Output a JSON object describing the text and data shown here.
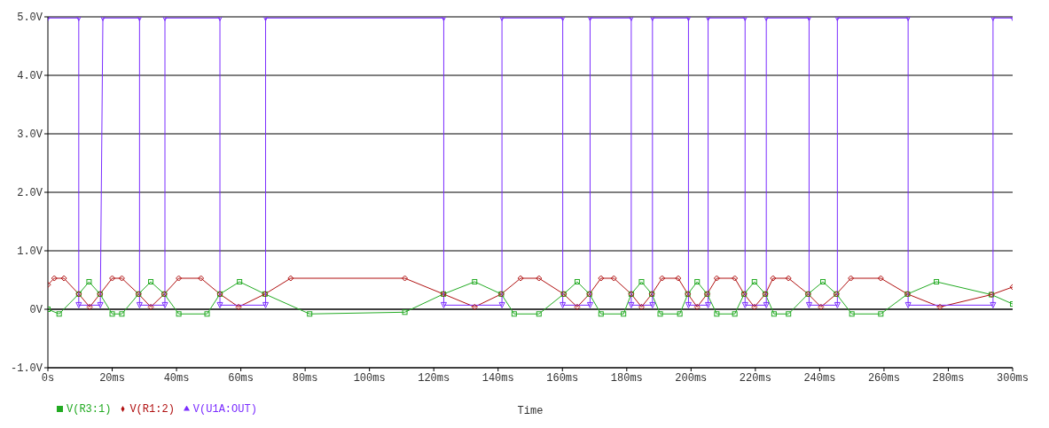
{
  "chart_data": {
    "type": "line",
    "xlabel": "Time",
    "legend": "bottom left",
    "grid": "y",
    "line_style": "solid",
    "xlim": [
      0,
      300
    ],
    "xticks": [
      {
        "value": 0,
        "label": "0s"
      },
      {
        "value": 20,
        "label": "20ms"
      },
      {
        "value": 40,
        "label": "40ms"
      },
      {
        "value": 60,
        "label": "60ms"
      },
      {
        "value": 80,
        "label": "80ms"
      },
      {
        "value": 100,
        "label": "100ms"
      },
      {
        "value": 120,
        "label": "120ms"
      },
      {
        "value": 140,
        "label": "140ms"
      },
      {
        "value": 160,
        "label": "160ms"
      },
      {
        "value": 180,
        "label": "180ms"
      },
      {
        "value": 200,
        "label": "200ms"
      },
      {
        "value": 220,
        "label": "220ms"
      },
      {
        "value": 240,
        "label": "240ms"
      },
      {
        "value": 260,
        "label": "260ms"
      },
      {
        "value": 280,
        "label": "280ms"
      },
      {
        "value": 300,
        "label": "300ms"
      }
    ],
    "ylim": [
      -1,
      5
    ],
    "yticks": [
      {
        "value": -1,
        "label": "-1.0V"
      },
      {
        "value": 0,
        "label": "0V"
      },
      {
        "value": 1,
        "label": "1.0V"
      },
      {
        "value": 2,
        "label": "2.0V"
      },
      {
        "value": 3,
        "label": "3.0V"
      },
      {
        "value": 4,
        "label": "4.0V"
      },
      {
        "value": 5,
        "label": "5.0V"
      }
    ],
    "series": [
      {
        "name": "V(R3:1)",
        "color": "#22aa22",
        "marker": "square",
        "x": [
          0,
          3.5,
          9.6,
          12.8,
          16.2,
          20,
          23,
          28.2,
          32,
          36.2,
          40.7,
          49.5,
          53.5,
          59.6,
          67.5,
          81.4,
          111,
          123,
          132.7,
          141,
          145,
          152.7,
          160.4,
          164.6,
          168.4,
          172,
          179,
          181.4,
          184.6,
          187.8,
          190.4,
          196.5,
          199,
          201.9,
          205,
          208,
          213.6,
          216.5,
          219.7,
          223.1,
          225.8,
          230.3,
          236.4,
          241,
          245.2,
          250,
          259,
          267.3,
          276.3,
          293.4,
          300
        ],
        "values": [
          0,
          -0.08,
          0.26,
          0.47,
          0.26,
          -0.08,
          -0.08,
          0.26,
          0.47,
          0.26,
          -0.08,
          -0.08,
          0.26,
          0.47,
          0.26,
          -0.08,
          -0.05,
          0.26,
          0.47,
          0.26,
          -0.08,
          -0.08,
          0.26,
          0.47,
          0.26,
          -0.08,
          -0.08,
          0.26,
          0.47,
          0.26,
          -0.08,
          -0.08,
          0.26,
          0.47,
          0.26,
          -0.08,
          -0.08,
          0.26,
          0.47,
          0.26,
          -0.08,
          -0.08,
          0.26,
          0.47,
          0.26,
          -0.08,
          -0.08,
          0.26,
          0.47,
          0.25,
          0.09
        ]
      },
      {
        "name": "V(R1:2)",
        "color": "#b01010",
        "marker": "diamond",
        "x": [
          0,
          2,
          5,
          9.6,
          13,
          16.2,
          20,
          23,
          28.2,
          32,
          36.2,
          40.7,
          47.6,
          53.5,
          59.3,
          67.5,
          75.5,
          111,
          123,
          132.7,
          141,
          147,
          152.7,
          160.4,
          164.6,
          168.4,
          172,
          176,
          181.4,
          184.6,
          187.8,
          191,
          196,
          199,
          201.9,
          205,
          208,
          213.6,
          216.5,
          219.7,
          223.1,
          225.5,
          230.3,
          236.4,
          240.4,
          245.2,
          249.7,
          259,
          267.3,
          277.4,
          293.4,
          300
        ],
        "values": [
          0.42,
          0.53,
          0.53,
          0.26,
          0.04,
          0.26,
          0.53,
          0.53,
          0.26,
          0.04,
          0.26,
          0.53,
          0.53,
          0.26,
          0.04,
          0.26,
          0.53,
          0.53,
          0.26,
          0.04,
          0.26,
          0.53,
          0.53,
          0.26,
          0.04,
          0.26,
          0.53,
          0.53,
          0.26,
          0.04,
          0.26,
          0.53,
          0.53,
          0.26,
          0.04,
          0.26,
          0.53,
          0.53,
          0.26,
          0.04,
          0.26,
          0.53,
          0.53,
          0.26,
          0.04,
          0.26,
          0.53,
          0.53,
          0.26,
          0.04,
          0.25,
          0.38
        ]
      },
      {
        "name": "V(U1A:OUT)",
        "color": "#7a2cff",
        "marker": "triangle",
        "x": [
          0,
          9.6,
          9.6,
          16.3,
          17.1,
          28.5,
          28.5,
          36.4,
          36.4,
          53.5,
          53.5,
          67.7,
          67.7,
          123.1,
          123.1,
          141.2,
          141.2,
          160.1,
          160.1,
          168.6,
          168.6,
          181.4,
          181.4,
          188,
          188,
          199.2,
          199.2,
          205.3,
          205.3,
          216.8,
          216.8,
          223.4,
          223.4,
          236.7,
          236.7,
          245.5,
          245.5,
          267.5,
          267.5,
          293.9,
          293.9,
          300
        ],
        "values": [
          4.98,
          4.98,
          0.07,
          0.07,
          4.98,
          4.98,
          0.07,
          0.07,
          4.98,
          4.98,
          0.07,
          0.07,
          4.98,
          4.98,
          0.07,
          0.07,
          4.98,
          4.98,
          0.07,
          0.07,
          4.98,
          4.98,
          0.07,
          0.07,
          4.98,
          4.98,
          0.07,
          0.07,
          4.98,
          4.98,
          0.07,
          0.07,
          4.98,
          4.98,
          0.07,
          0.07,
          4.98,
          4.98,
          0.07,
          0.07,
          4.98,
          4.98
        ]
      }
    ]
  }
}
